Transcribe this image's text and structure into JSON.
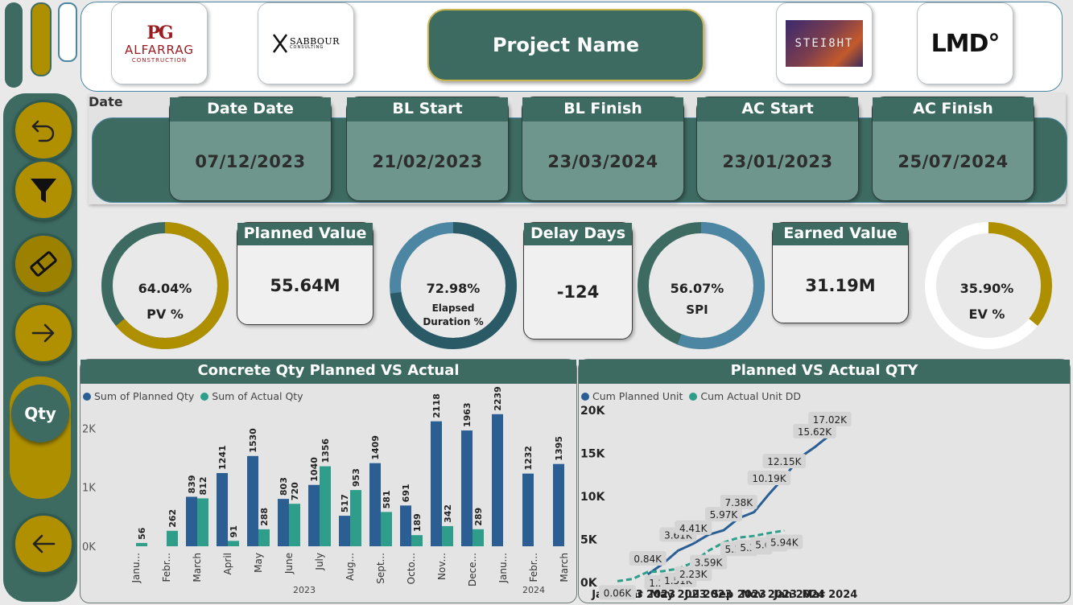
{
  "header": {
    "project_name": "Project Name",
    "logos": [
      {
        "name": "ALFARRAG",
        "sub": "CONSTRUCTION",
        "mark": "PG"
      },
      {
        "name": "SABBOUR",
        "sub": "CONSULTING"
      },
      {
        "name": "STEI8HT"
      },
      {
        "name": "LMD°"
      }
    ]
  },
  "sidebar": {
    "buttons": [
      {
        "label": "",
        "icon": "back-arrow-icon"
      },
      {
        "label": "",
        "icon": "filter-icon"
      },
      {
        "label": "",
        "icon": "eraser-icon"
      },
      {
        "label": "",
        "icon": "arrow-right-icon"
      },
      {
        "label": "Qty",
        "icon": ""
      },
      {
        "label": "",
        "icon": "arrow-left-icon"
      }
    ]
  },
  "dates": {
    "section_label": "Date",
    "cards": [
      {
        "title": "Date Date",
        "value": "07/12/2023"
      },
      {
        "title": "BL Start",
        "value": "21/02/2023"
      },
      {
        "title": "BL Finish",
        "value": "23/03/2024"
      },
      {
        "title": "AC Start",
        "value": "23/01/2023"
      },
      {
        "title": "AC Finish",
        "value": "25/07/2024"
      }
    ]
  },
  "kpis": {
    "gauges": [
      {
        "value_label": "64.04%",
        "name": "PV %",
        "fraction": 0.6404,
        "color": "#ae8f00",
        "track": "#3d6b62"
      },
      {
        "value_label": "72.98%",
        "name": "Elapsed Duration %",
        "name_l1": "Elapsed",
        "name_l2": "Duration %",
        "fraction": 0.7298,
        "color": "#2a5a66",
        "track": "#4c86a2"
      },
      {
        "value_label": "56.07%",
        "name": "SPI",
        "fraction": 0.5607,
        "color": "#4c86a2",
        "track": "#3d6b62"
      },
      {
        "value_label": "35.90%",
        "name": "EV %",
        "fraction": 0.359,
        "color": "#ae8f00",
        "track": "#ffffff"
      }
    ],
    "cards": [
      {
        "title": "Planned Value",
        "value": "55.64M"
      },
      {
        "title": "Delay Days",
        "value": "-124"
      },
      {
        "title": "Earned Value",
        "value": "31.19M"
      }
    ]
  },
  "colors": {
    "teal": "#3d6b62",
    "gold": "#ae8f00",
    "planned": "#2b5f94",
    "actual": "#2e9e8a"
  },
  "chart_data": [
    {
      "type": "bar",
      "title": "Concrete Qty Planned VS Actual",
      "legend_position": "top-left",
      "categories": [
        "Janu...",
        "Febr...",
        "March",
        "April",
        "May",
        "June",
        "July",
        "Aug...",
        "Sept...",
        "Octo...",
        "Nov...",
        "Dece...",
        "Janu...",
        "Febr...",
        "March"
      ],
      "year_labels": [
        "2023",
        "2024"
      ],
      "series": [
        {
          "name": "Sum of Planned Qty",
          "values": [
            null,
            null,
            839,
            1241,
            1530,
            803,
            1040,
            517,
            1409,
            691,
            2118,
            1963,
            2239,
            1232,
            1395
          ]
        },
        {
          "name": "Sum of Actual Qty",
          "values": [
            56,
            262,
            812,
            91,
            288,
            720,
            1356,
            953,
            581,
            189,
            342,
            289,
            null,
            null,
            null
          ]
        }
      ],
      "y_ticks": [
        "0K",
        "1K",
        "2K"
      ],
      "ylim": [
        0,
        2400
      ]
    },
    {
      "type": "line",
      "title": "Planned VS Actual QTY",
      "legend_position": "top-left",
      "x_ticks": [
        "Jan 2023",
        "Mar 2023",
        "May 2023",
        "Jul 2023",
        "Sep 2023",
        "Nov 2023",
        "Jan 2024",
        "Mar 2024"
      ],
      "y_ticks": [
        "0K",
        "5K",
        "10K",
        "15K",
        "20K"
      ],
      "ylim": [
        0,
        20000
      ],
      "series": [
        {
          "name": "Cum Planned Unit",
          "x": [
            "2023-03",
            "2023-04",
            "2023-05",
            "2023-06",
            "2023-07",
            "2023-08",
            "2023-09",
            "2023-10",
            "2023-11",
            "2023-12",
            "2024-01",
            "2024-02",
            "2024-03"
          ],
          "values": [
            840,
            2080,
            3610,
            4410,
            5450,
            5970,
            7380,
            8070,
            10190,
            12150,
            14390,
            15620,
            17020
          ],
          "labels": {
            "2023-03": "0.84K",
            "2023-05": "3.61K",
            "2023-06": "4.41K",
            "2023-08": "5.97K",
            "2023-09": "7.38K",
            "2023-11": "10.19K",
            "2023-12": "12.15K",
            "2024-02": "15.62K",
            "2024-03": "17.02K"
          }
        },
        {
          "name": "Cum Actual Unit DD",
          "x": [
            "2023-01",
            "2023-02",
            "2023-03",
            "2023-04",
            "2023-05",
            "2023-06",
            "2023-07",
            "2023-08",
            "2023-09",
            "2023-10",
            "2023-11",
            "2023-12"
          ],
          "values": [
            60,
            320,
            1130,
            1220,
            1510,
            2230,
            3590,
            4540,
            5120,
            5310,
            5650,
            5940
          ],
          "labels": {
            "2023-01": "0.06K",
            "2023-04": "1.22K",
            "2023-05": "1.51K",
            "2023-06": "2.23K",
            "2023-07": "3.59K",
            "2023-09": "5.12K",
            "2023-10": "5.31K",
            "2023-11": "5.65K",
            "2023-12": "5.94K"
          }
        }
      ]
    }
  ]
}
